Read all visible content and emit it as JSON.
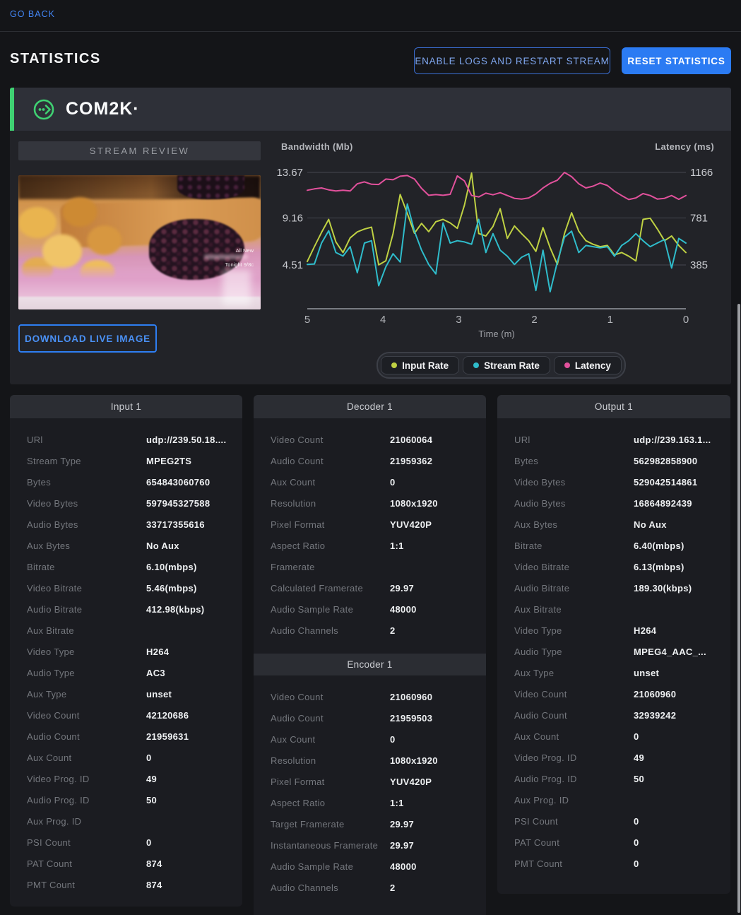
{
  "page": {
    "go_back": "GO BACK",
    "title": "STATISTICS"
  },
  "actions": {
    "enable_logs_label": "ENABLE LOGS AND RESTART STREAM",
    "reset_label": "RESET STATISTICS"
  },
  "brand": {
    "name": "COM2K·"
  },
  "stream_review": {
    "title": "STREAM REVIEW",
    "download_label": "DOWNLOAD LIVE IMAGE",
    "watermark_line1": "All New",
    "watermark_line2": "Tonight 9/8c"
  },
  "chart_data": {
    "type": "line",
    "y_left": {
      "label": "Bandwidth (Mb)",
      "ticks": [
        13.67,
        9.16,
        4.51
      ]
    },
    "y_right": {
      "label": "Latency (ms)",
      "ticks": [
        1166,
        781,
        385
      ]
    },
    "x": {
      "label": "Time (m)",
      "ticks": [
        5,
        4,
        3,
        2,
        1,
        0
      ],
      "reversed": true
    },
    "grid": true,
    "legend_position": "bottom",
    "series": [
      {
        "name": "Input Rate",
        "axis": "left",
        "color": "#bfd143",
        "values": [
          4.85,
          6.33,
          7.73,
          9.02,
          6.79,
          5.74,
          7.19,
          7.78,
          8.06,
          8.25,
          4.52,
          4.92,
          7.61,
          11.49,
          9.61,
          7.66,
          8.62,
          7.8,
          8.79,
          9.02,
          8.67,
          8.13,
          10.43,
          13.6,
          7.62,
          7.38,
          8.32,
          10.08,
          7.14,
          8.37,
          7.61,
          6.91,
          5.85,
          8.2,
          6.21,
          4.56,
          7.61,
          9.68,
          7.85,
          6.91,
          6.56,
          6.32,
          6.44,
          5.5,
          5.74,
          5.38,
          4.91,
          9.02,
          9.14,
          8.08,
          6.91,
          7.38,
          6.44,
          5.74
        ]
      },
      {
        "name": "Stream Rate",
        "axis": "left",
        "color": "#2fbccb",
        "values": [
          4.56,
          4.61,
          6.68,
          7.9,
          5.74,
          5.39,
          6.32,
          3.74,
          6.68,
          6.91,
          2.45,
          4.33,
          5.62,
          4.8,
          10.55,
          7.85,
          5.97,
          4.56,
          3.62,
          8.67,
          6.68,
          6.91,
          6.79,
          6.56,
          9.02,
          5.74,
          7.61,
          5.97,
          5.38,
          4.56,
          5.27,
          5.62,
          1.98,
          5.97,
          1.86,
          4.8,
          7.26,
          7.85,
          5.74,
          6.44,
          6.32,
          6.21,
          6.32,
          5.38,
          6.44,
          6.91,
          7.61,
          6.91,
          6.32,
          6.68,
          7.03,
          4.21,
          7.14,
          6.68
        ]
      },
      {
        "name": "Latency",
        "axis": "right",
        "color": "#e2519c",
        "values": [
          1015,
          1027,
          1035,
          1019,
          1009,
          1015,
          1009,
          1070,
          1086,
          1066,
          1064,
          1110,
          1104,
          1134,
          1140,
          1110,
          1031,
          973,
          979,
          973,
          981,
          1136,
          1094,
          971,
          959,
          991,
          977,
          995,
          971,
          947,
          941,
          951,
          985,
          1035,
          1074,
          1100,
          1166,
          1130,
          1070,
          1035,
          1050,
          1076,
          1056,
          1007,
          971,
          937,
          951,
          987,
          971,
          941,
          947,
          971,
          939,
          971
        ]
      }
    ]
  },
  "panels": {
    "input": {
      "title": "Input 1",
      "rows": [
        {
          "label": "URl",
          "value": "udp://239.50.18...."
        },
        {
          "label": "Stream Type",
          "value": "MPEG2TS"
        },
        {
          "label": "Bytes",
          "value": "654843060760"
        },
        {
          "label": "Video Bytes",
          "value": "597945327588"
        },
        {
          "label": "Audio Bytes",
          "value": "33717355616"
        },
        {
          "label": "Aux Bytes",
          "value": "No Aux"
        },
        {
          "label": "Bitrate",
          "value": "6.10(mbps)"
        },
        {
          "label": "Video Bitrate",
          "value": "5.46(mbps)"
        },
        {
          "label": "Audio Bitrate",
          "value": "412.98(kbps)"
        },
        {
          "label": "Aux Bitrate",
          "value": ""
        },
        {
          "label": "Video Type",
          "value": "H264"
        },
        {
          "label": "Audio Type",
          "value": "AC3"
        },
        {
          "label": "Aux Type",
          "value": "unset"
        },
        {
          "label": "Video Count",
          "value": "42120686"
        },
        {
          "label": "Audio Count",
          "value": "21959631"
        },
        {
          "label": "Aux Count",
          "value": "0"
        },
        {
          "label": "Video Prog. ID",
          "value": "49"
        },
        {
          "label": "Audio Prog. ID",
          "value": "50"
        },
        {
          "label": "Aux Prog. ID",
          "value": ""
        },
        {
          "label": "PSI Count",
          "value": "0"
        },
        {
          "label": "PAT Count",
          "value": "874"
        },
        {
          "label": "PMT Count",
          "value": "874"
        }
      ]
    },
    "decoder": {
      "title": "Decoder 1",
      "rows": [
        {
          "label": "Video Count",
          "value": "21060064"
        },
        {
          "label": "Audio Count",
          "value": "21959362"
        },
        {
          "label": "Aux Count",
          "value": "0"
        },
        {
          "label": "Resolution",
          "value": "1080x1920"
        },
        {
          "label": "Pixel Format",
          "value": "YUV420P"
        },
        {
          "label": "Aspect Ratio",
          "value": "1:1"
        },
        {
          "label": "Framerate",
          "value": ""
        },
        {
          "label": "Calculated Framerate",
          "value": "29.97"
        },
        {
          "label": "Audio Sample Rate",
          "value": "48000"
        },
        {
          "label": "Audio Channels",
          "value": "2"
        }
      ]
    },
    "encoder": {
      "title": "Encoder 1",
      "rows": [
        {
          "label": "Video Count",
          "value": "21060960"
        },
        {
          "label": "Audio Count",
          "value": "21959503"
        },
        {
          "label": "Aux Count",
          "value": "0"
        },
        {
          "label": "Resolution",
          "value": "1080x1920"
        },
        {
          "label": "Pixel Format",
          "value": "YUV420P"
        },
        {
          "label": "Aspect Ratio",
          "value": "1:1"
        },
        {
          "label": "Target Framerate",
          "value": "29.97"
        },
        {
          "label": "Instantaneous Framerate",
          "value": "29.97"
        },
        {
          "label": "Audio Sample Rate",
          "value": "48000"
        },
        {
          "label": "Audio Channels",
          "value": "2"
        }
      ]
    },
    "output": {
      "title": "Output 1",
      "rows": [
        {
          "label": "URl",
          "value": "udp://239.163.1..."
        },
        {
          "label": "Bytes",
          "value": "562982858900"
        },
        {
          "label": "Video Bytes",
          "value": "529042514861"
        },
        {
          "label": "Audio Bytes",
          "value": "16864892439"
        },
        {
          "label": "Aux Bytes",
          "value": "No Aux"
        },
        {
          "label": "Bitrate",
          "value": "6.40(mbps)"
        },
        {
          "label": "Video Bitrate",
          "value": "6.13(mbps)"
        },
        {
          "label": "Audio Bitrate",
          "value": "189.30(kbps)"
        },
        {
          "label": "Aux Bitrate",
          "value": ""
        },
        {
          "label": "Video Type",
          "value": "H264"
        },
        {
          "label": "Audio Type",
          "value": "MPEG4_AAC_..."
        },
        {
          "label": "Aux Type",
          "value": "unset"
        },
        {
          "label": "Video Count",
          "value": "21060960"
        },
        {
          "label": "Audio Count",
          "value": "32939242"
        },
        {
          "label": "Aux Count",
          "value": "0"
        },
        {
          "label": "Video Prog. ID",
          "value": "49"
        },
        {
          "label": "Audio Prog. ID",
          "value": "50"
        },
        {
          "label": "Aux Prog. ID",
          "value": ""
        },
        {
          "label": "PSI Count",
          "value": "0"
        },
        {
          "label": "PAT Count",
          "value": "0"
        },
        {
          "label": "PMT Count",
          "value": "0"
        }
      ]
    }
  },
  "colors": {
    "accent_blue": "#2b7bf3",
    "link_blue": "#4285f4",
    "brand_green": "#3fd172",
    "input_rate": "#bfd143",
    "stream_rate": "#2fbccb",
    "latency": "#e2519c"
  }
}
